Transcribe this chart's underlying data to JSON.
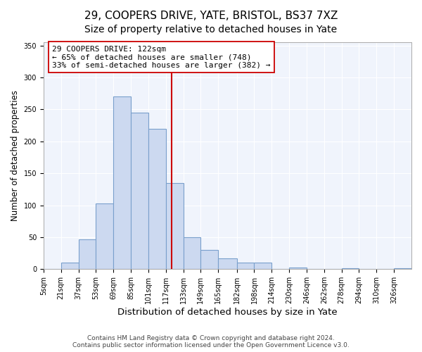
{
  "title": "29, COOPERS DRIVE, YATE, BRISTOL, BS37 7XZ",
  "subtitle": "Size of property relative to detached houses in Yate",
  "xlabel": "Distribution of detached houses by size in Yate",
  "ylabel": "Number of detached properties",
  "bar_edges": [
    5,
    21,
    37,
    53,
    69,
    85,
    101,
    117,
    133,
    149,
    165,
    182,
    198,
    214,
    230,
    246,
    262,
    278,
    294,
    310,
    326,
    342
  ],
  "bar_heights": [
    0,
    10,
    47,
    103,
    270,
    245,
    220,
    135,
    50,
    30,
    17,
    10,
    10,
    0,
    3,
    0,
    0,
    2,
    0,
    0,
    2
  ],
  "bar_color": "#ccd9f0",
  "bar_edge_color": "#7aa0cc",
  "reference_line_x": 122,
  "reference_line_color": "#cc0000",
  "annotation_line1": "29 COOPERS DRIVE: 122sqm",
  "annotation_line2": "← 65% of detached houses are smaller (748)",
  "annotation_line3": "33% of semi-detached houses are larger (382) →",
  "annotation_box_color": "#ffffff",
  "annotation_box_edge_color": "#cc0000",
  "tick_labels": [
    "5sqm",
    "21sqm",
    "37sqm",
    "53sqm",
    "69sqm",
    "85sqm",
    "101sqm",
    "117sqm",
    "133sqm",
    "149sqm",
    "165sqm",
    "182sqm",
    "198sqm",
    "214sqm",
    "230sqm",
    "246sqm",
    "262sqm",
    "278sqm",
    "294sqm",
    "310sqm",
    "326sqm"
  ],
  "ylim": [
    0,
    355
  ],
  "yticks": [
    0,
    50,
    100,
    150,
    200,
    250,
    300,
    350
  ],
  "footer_text": "Contains HM Land Registry data © Crown copyright and database right 2024.\nContains public sector information licensed under the Open Government Licence v3.0.",
  "title_fontsize": 11,
  "subtitle_fontsize": 10,
  "xlabel_fontsize": 9.5,
  "ylabel_fontsize": 8.5,
  "tick_fontsize": 7,
  "annotation_fontsize": 8,
  "footer_fontsize": 6.5,
  "bg_color": "#f0f4fc"
}
